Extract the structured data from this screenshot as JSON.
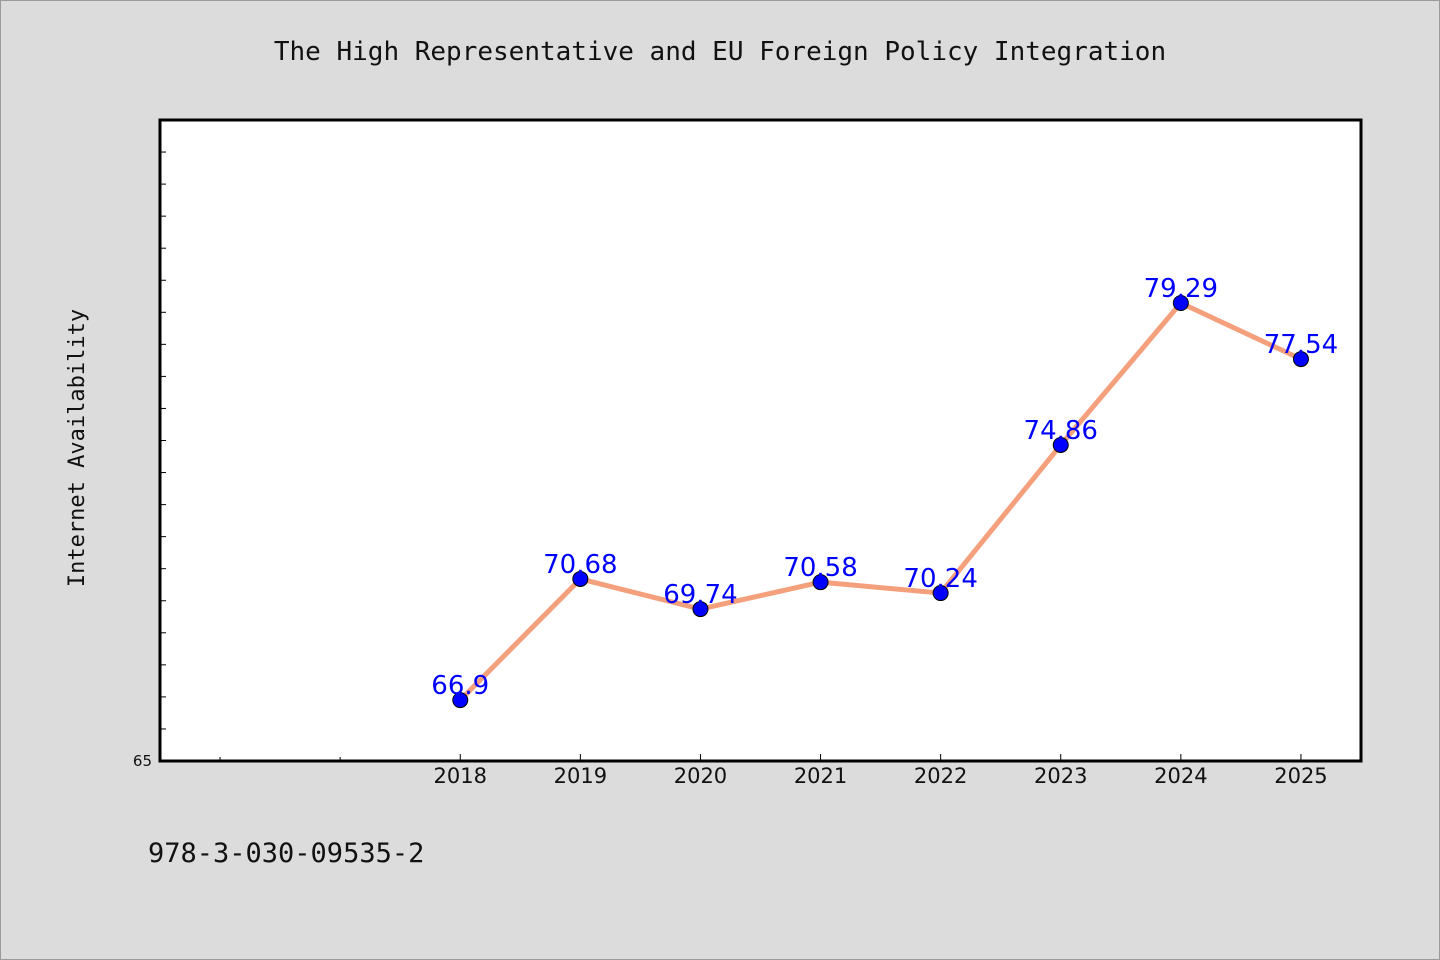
{
  "chart_data": {
    "type": "line",
    "title": "The High Representative and EU Foreign Policy Integration",
    "xlabel": "",
    "ylabel": "Internet Availability",
    "categories": [
      "2018",
      "2019",
      "2020",
      "2021",
      "2022",
      "2023",
      "2024",
      "2025"
    ],
    "series": [
      {
        "values": [
          66.9,
          70.68,
          69.74,
          70.58,
          70.24,
          74.86,
          79.29,
          77.54
        ],
        "labels": [
          "66.9",
          "70.68",
          "69.74",
          "70.58",
          "70.24",
          "74.86",
          "79.29",
          "77.54"
        ]
      }
    ],
    "y_tick_labels": [
      "65"
    ],
    "ylim": [
      65,
      85
    ],
    "x_range": [
      2015.5,
      2025.5
    ],
    "grid": false,
    "legend": "none",
    "colors": {
      "line": "#f4a07c",
      "marker": "#0000ff",
      "data_label": "#0000ff",
      "background": "#dcdcdc",
      "plot_background": "#ffffff"
    }
  },
  "footer": {
    "isbn": "978-3-030-09535-2"
  }
}
